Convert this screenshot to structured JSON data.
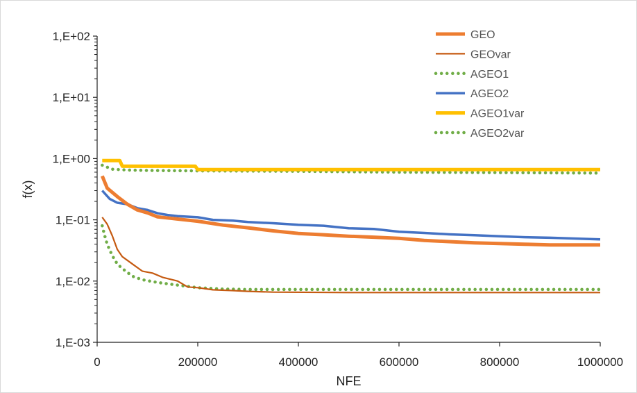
{
  "chart_data": {
    "type": "line",
    "xlabel": "NFE",
    "ylabel": "f(x)",
    "x_scale": "linear",
    "y_scale": "log",
    "xlim": [
      0,
      1000000
    ],
    "ylim": [
      0.001,
      100
    ],
    "x_ticks": [
      0,
      200000,
      400000,
      600000,
      800000,
      1000000
    ],
    "x_tick_labels": [
      "0",
      "200000",
      "400000",
      "600000",
      "800000",
      "1000000"
    ],
    "y_ticks": [
      100,
      10,
      1,
      0.1,
      0.01,
      0.001
    ],
    "y_tick_labels": [
      "1,E+02",
      "1,E+01",
      "1,E+00",
      "1,E-01",
      "1,E-02",
      "1,E-03"
    ],
    "grid": false,
    "legend_position": "top-right",
    "series": [
      {
        "name": "GEO",
        "color": "#ED7D31",
        "style": "solid-thick",
        "points": [
          [
            10000,
            0.52
          ],
          [
            20000,
            0.33
          ],
          [
            40000,
            0.24
          ],
          [
            60000,
            0.18
          ],
          [
            80000,
            0.145
          ],
          [
            100000,
            0.13
          ],
          [
            120000,
            0.112
          ],
          [
            150000,
            0.105
          ],
          [
            200000,
            0.095
          ],
          [
            250000,
            0.082
          ],
          [
            300000,
            0.074
          ],
          [
            350000,
            0.066
          ],
          [
            400000,
            0.06
          ],
          [
            450000,
            0.057
          ],
          [
            500000,
            0.054
          ],
          [
            550000,
            0.052
          ],
          [
            600000,
            0.05
          ],
          [
            650000,
            0.046
          ],
          [
            700000,
            0.044
          ],
          [
            750000,
            0.042
          ],
          [
            800000,
            0.041
          ],
          [
            850000,
            0.04
          ],
          [
            900000,
            0.039
          ],
          [
            1000000,
            0.039
          ]
        ]
      },
      {
        "name": "GEOvar",
        "color": "#C55A11",
        "style": "solid-thin",
        "points": [
          [
            10000,
            0.11
          ],
          [
            20000,
            0.085
          ],
          [
            30000,
            0.055
          ],
          [
            40000,
            0.033
          ],
          [
            50000,
            0.025
          ],
          [
            70000,
            0.019
          ],
          [
            90000,
            0.0145
          ],
          [
            110000,
            0.0135
          ],
          [
            130000,
            0.0115
          ],
          [
            160000,
            0.01
          ],
          [
            180000,
            0.008
          ],
          [
            200000,
            0.0078
          ],
          [
            230000,
            0.0072
          ],
          [
            270000,
            0.007
          ],
          [
            300000,
            0.0068
          ],
          [
            350000,
            0.0066
          ],
          [
            500000,
            0.0065
          ],
          [
            700000,
            0.0065
          ],
          [
            1000000,
            0.0065
          ]
        ]
      },
      {
        "name": "AGEO1",
        "color": "#70AD47",
        "style": "dotted",
        "points": [
          [
            10000,
            0.08
          ],
          [
            15000,
            0.055
          ],
          [
            20000,
            0.04
          ],
          [
            30000,
            0.026
          ],
          [
            40000,
            0.019
          ],
          [
            50000,
            0.016
          ],
          [
            70000,
            0.012
          ],
          [
            90000,
            0.0105
          ],
          [
            120000,
            0.0095
          ],
          [
            150000,
            0.0088
          ],
          [
            200000,
            0.0078
          ],
          [
            250000,
            0.0074
          ],
          [
            300000,
            0.0073
          ],
          [
            400000,
            0.0073
          ],
          [
            500000,
            0.0073
          ],
          [
            700000,
            0.0073
          ],
          [
            1000000,
            0.0073
          ]
        ]
      },
      {
        "name": "AGEO2",
        "color": "#4472C4",
        "style": "solid",
        "points": [
          [
            10000,
            0.3
          ],
          [
            25000,
            0.22
          ],
          [
            40000,
            0.19
          ],
          [
            60000,
            0.18
          ],
          [
            80000,
            0.155
          ],
          [
            100000,
            0.145
          ],
          [
            120000,
            0.128
          ],
          [
            140000,
            0.12
          ],
          [
            160000,
            0.115
          ],
          [
            200000,
            0.11
          ],
          [
            230000,
            0.1
          ],
          [
            270000,
            0.097
          ],
          [
            300000,
            0.092
          ],
          [
            350000,
            0.088
          ],
          [
            400000,
            0.083
          ],
          [
            450000,
            0.08
          ],
          [
            500000,
            0.073
          ],
          [
            550000,
            0.071
          ],
          [
            600000,
            0.064
          ],
          [
            650000,
            0.061
          ],
          [
            700000,
            0.058
          ],
          [
            750000,
            0.056
          ],
          [
            800000,
            0.054
          ],
          [
            850000,
            0.052
          ],
          [
            900000,
            0.051
          ],
          [
            1000000,
            0.048
          ]
        ]
      },
      {
        "name": "AGEO1var",
        "color": "#FFC000",
        "style": "solid-thick",
        "points": [
          [
            10000,
            0.93
          ],
          [
            45000,
            0.93
          ],
          [
            50000,
            0.75
          ],
          [
            195000,
            0.75
          ],
          [
            200000,
            0.66
          ],
          [
            1000000,
            0.66
          ]
        ]
      },
      {
        "name": "AGEO2var",
        "color": "#70AD47",
        "style": "dotted",
        "points": [
          [
            10000,
            0.78
          ],
          [
            30000,
            0.67
          ],
          [
            60000,
            0.65
          ],
          [
            100000,
            0.64
          ],
          [
            200000,
            0.63
          ],
          [
            400000,
            0.62
          ],
          [
            600000,
            0.6
          ],
          [
            800000,
            0.59
          ],
          [
            1000000,
            0.58
          ]
        ]
      }
    ]
  }
}
